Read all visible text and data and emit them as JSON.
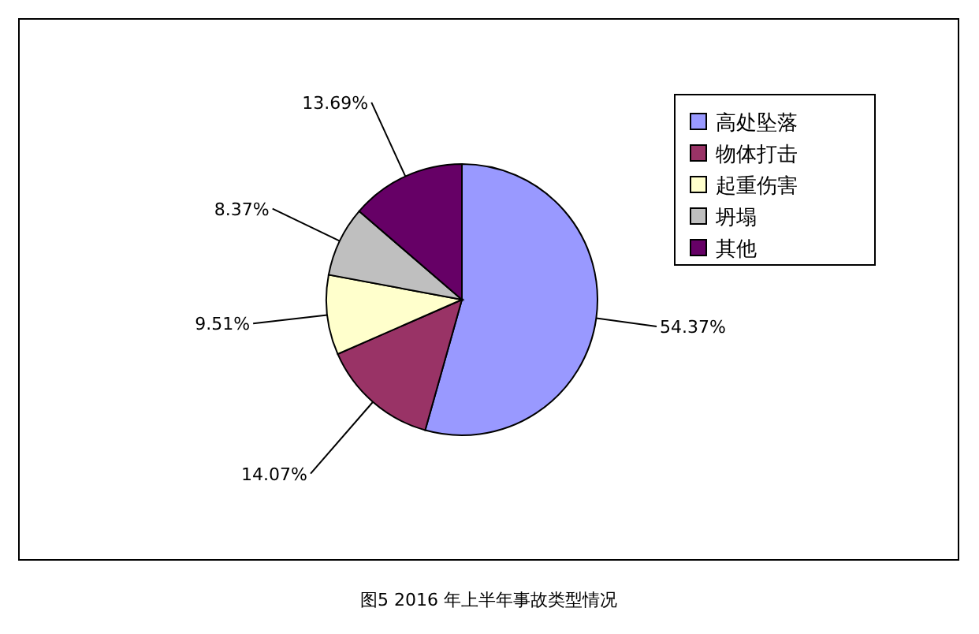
{
  "chart_data": {
    "type": "pie",
    "title": "图5  2016 年上半年事故类型情况",
    "categories": [
      "高处坠落",
      "物体打击",
      "起重伤害",
      "坍塌",
      "其他"
    ],
    "values": [
      54.37,
      14.07,
      9.51,
      8.37,
      13.69
    ],
    "colors": [
      "#9999ff",
      "#993366",
      "#ffffcc",
      "#bfbfbf",
      "#660066"
    ],
    "value_labels": [
      "54.37%",
      "14.07%",
      "9.51%",
      "8.37%",
      "13.69%"
    ],
    "legend": "right"
  }
}
